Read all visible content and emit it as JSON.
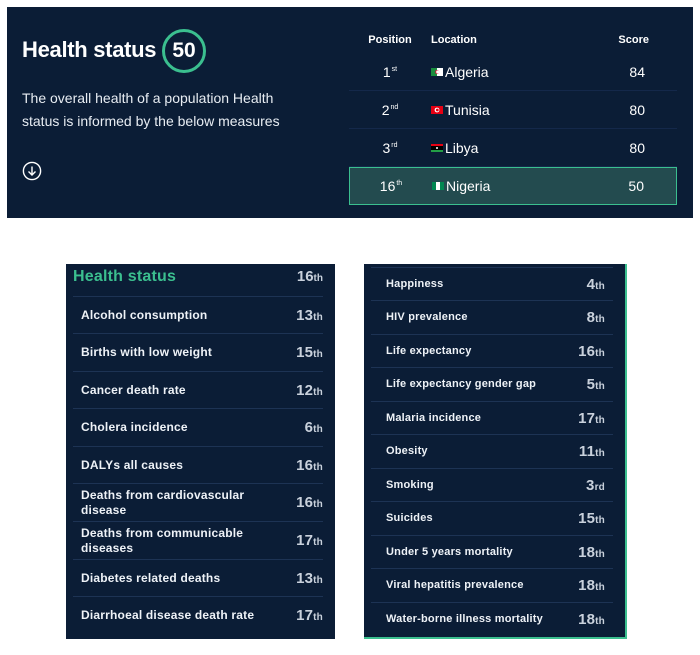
{
  "header": {
    "title": "Health status",
    "score": "50",
    "description": "The overall health of a population Health status is informed by the below measures"
  },
  "ranking": {
    "columns": [
      "Position",
      "Location",
      "Score"
    ],
    "rows": [
      {
        "pos": "1",
        "suffix": "st",
        "location": "Algeria",
        "score": "84",
        "flag": "algeria"
      },
      {
        "pos": "2",
        "suffix": "nd",
        "location": "Tunisia",
        "score": "80",
        "flag": "tunisia"
      },
      {
        "pos": "3",
        "suffix": "rd",
        "location": "Libya",
        "score": "80",
        "flag": "libya"
      },
      {
        "pos": "16",
        "suffix": "th",
        "location": "Nigeria",
        "score": "50",
        "flag": "nigeria",
        "highlight": true
      }
    ]
  },
  "left_list": {
    "title": "Health status",
    "title_rank": "16",
    "title_suffix": "th",
    "items": [
      {
        "label": "Alcohol consumption",
        "rank": "13",
        "suffix": "th"
      },
      {
        "label": "Births with low weight",
        "rank": "15",
        "suffix": "th"
      },
      {
        "label": "Cancer death rate",
        "rank": "12",
        "suffix": "th"
      },
      {
        "label": "Cholera incidence",
        "rank": "6",
        "suffix": "th"
      },
      {
        "label": "DALYs all causes",
        "rank": "16",
        "suffix": "th"
      },
      {
        "label": "Deaths from cardiovascular disease",
        "rank": "16",
        "suffix": "th"
      },
      {
        "label": "Deaths from communicable diseases",
        "rank": "17",
        "suffix": "th"
      },
      {
        "label": "Diabetes related deaths",
        "rank": "13",
        "suffix": "th"
      },
      {
        "label": "Diarrhoeal disease death rate",
        "rank": "17",
        "suffix": "th"
      }
    ]
  },
  "right_list": {
    "items": [
      {
        "label": "Happiness",
        "rank": "4",
        "suffix": "th"
      },
      {
        "label": "HIV prevalence",
        "rank": "8",
        "suffix": "th"
      },
      {
        "label": "Life expectancy",
        "rank": "16",
        "suffix": "th"
      },
      {
        "label": "Life expectancy gender gap",
        "rank": "5",
        "suffix": "th"
      },
      {
        "label": "Malaria incidence",
        "rank": "17",
        "suffix": "th"
      },
      {
        "label": "Obesity",
        "rank": "11",
        "suffix": "th"
      },
      {
        "label": "Smoking",
        "rank": "3",
        "suffix": "rd"
      },
      {
        "label": "Suicides",
        "rank": "15",
        "suffix": "th"
      },
      {
        "label": "Under 5 years mortality",
        "rank": "18",
        "suffix": "th"
      },
      {
        "label": "Viral hepatitis prevalence",
        "rank": "18",
        "suffix": "th"
      },
      {
        "label": "Water-borne illness mortality",
        "rank": "18",
        "suffix": "th"
      }
    ]
  },
  "colors": {
    "background": "#0b1d36",
    "accent": "#3bbf8f",
    "highlight": "#234b4f"
  },
  "icons": {
    "scroll": "arrow-down-circle-icon"
  }
}
